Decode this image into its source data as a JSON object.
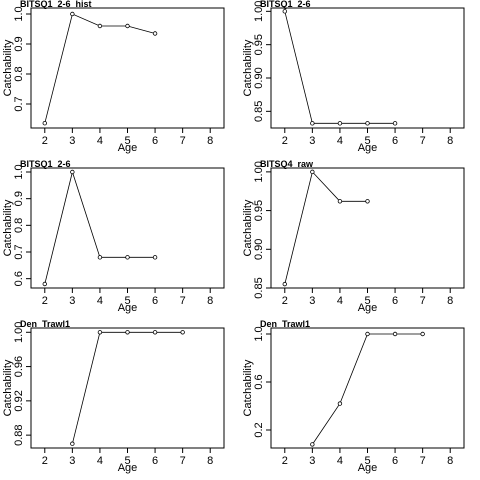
{
  "chart_data": [
    {
      "type": "line",
      "title": "BITSQ1_2-6_hist",
      "xlabel": "Age",
      "ylabel": "Catchability",
      "xlim": [
        1.5,
        8.5
      ],
      "ylim": [
        0.62,
        1.02
      ],
      "xticks": [
        2,
        3,
        4,
        5,
        6,
        7,
        8
      ],
      "xtick_labels": [
        "2",
        "3",
        "4",
        "5",
        "6",
        "7",
        "8"
      ],
      "yticks": [
        0.7,
        0.8,
        0.9,
        1.0
      ],
      "ytick_labels": [
        "0.7",
        "0.8",
        "0.9",
        "1.0"
      ],
      "x": [
        2,
        3,
        4,
        5,
        6
      ],
      "values": [
        0.636,
        1.0,
        0.96,
        0.96,
        0.935
      ]
    },
    {
      "type": "line",
      "title": "BITSQ1_2-6",
      "xlabel": "Age",
      "ylabel": "Catchability",
      "xlim": [
        1.5,
        8.5
      ],
      "ylim": [
        0.825,
        1.005
      ],
      "xticks": [
        2,
        3,
        4,
        5,
        6,
        7,
        8
      ],
      "xtick_labels": [
        "2",
        "3",
        "4",
        "5",
        "6",
        "7",
        "8"
      ],
      "yticks": [
        0.85,
        0.9,
        0.95,
        1.0
      ],
      "ytick_labels": [
        "0.85",
        "0.90",
        "0.95",
        "1.00"
      ],
      "x": [
        2,
        3,
        4,
        5,
        6
      ],
      "values": [
        1.0,
        0.832,
        0.832,
        0.832,
        0.832
      ]
    },
    {
      "type": "line",
      "title": "BITSQ1_2-6",
      "xlabel": "Age",
      "ylabel": "Catchability",
      "xlim": [
        1.5,
        8.5
      ],
      "ylim": [
        0.565,
        1.015
      ],
      "xticks": [
        2,
        3,
        4,
        5,
        6,
        7,
        8
      ],
      "xtick_labels": [
        "2",
        "3",
        "4",
        "5",
        "6",
        "7",
        "8"
      ],
      "yticks": [
        0.6,
        0.7,
        0.8,
        0.9,
        1.0
      ],
      "ytick_labels": [
        "0.6",
        "0.7",
        "0.8",
        "0.9",
        "1.0"
      ],
      "x": [
        2,
        3,
        4,
        5,
        6
      ],
      "values": [
        0.58,
        1.0,
        0.68,
        0.68,
        0.68
      ]
    },
    {
      "type": "line",
      "title": "BITSQ4_raw",
      "xlabel": "Age",
      "ylabel": "Catchability",
      "xlim": [
        1.5,
        8.5
      ],
      "ylim": [
        0.85,
        1.005
      ],
      "xticks": [
        2,
        3,
        4,
        5,
        6,
        7,
        8
      ],
      "xtick_labels": [
        "2",
        "3",
        "4",
        "5",
        "6",
        "7",
        "8"
      ],
      "yticks": [
        0.85,
        0.9,
        0.95,
        1.0
      ],
      "ytick_labels": [
        "0.85",
        "0.90",
        "0.95",
        "1.00"
      ],
      "x": [
        2,
        3,
        4,
        5
      ],
      "values": [
        0.855,
        1.0,
        0.962,
        0.962
      ]
    },
    {
      "type": "line",
      "title": "Den_Trawl1",
      "xlabel": "Age",
      "ylabel": "Catchability",
      "xlim": [
        1.5,
        8.5
      ],
      "ylim": [
        0.865,
        1.005
      ],
      "xticks": [
        2,
        3,
        4,
        5,
        6,
        7,
        8
      ],
      "xtick_labels": [
        "2",
        "3",
        "4",
        "5",
        "6",
        "7",
        "8"
      ],
      "yticks": [
        0.88,
        0.92,
        0.96,
        1.0
      ],
      "ytick_labels": [
        "0.88",
        "0.92",
        "0.96",
        "1.00"
      ],
      "x": [
        3,
        4,
        5,
        6,
        7
      ],
      "values": [
        0.87,
        1.0,
        1.0,
        1.0,
        1.0
      ]
    },
    {
      "type": "line",
      "title": "Den_Trawl1",
      "xlabel": "Age",
      "ylabel": "Catchability",
      "xlim": [
        1.5,
        8.5
      ],
      "ylim": [
        0.05,
        1.05
      ],
      "xticks": [
        2,
        3,
        4,
        5,
        6,
        7,
        8
      ],
      "xtick_labels": [
        "2",
        "3",
        "4",
        "5",
        "6",
        "7",
        "8"
      ],
      "yticks": [
        0.2,
        0.6,
        1.0
      ],
      "ytick_labels": [
        "0.2",
        "0.6",
        "1.0"
      ],
      "x": [
        3,
        4,
        5,
        6,
        7
      ],
      "values": [
        0.08,
        0.42,
        1.0,
        1.0,
        1.0
      ]
    }
  ]
}
